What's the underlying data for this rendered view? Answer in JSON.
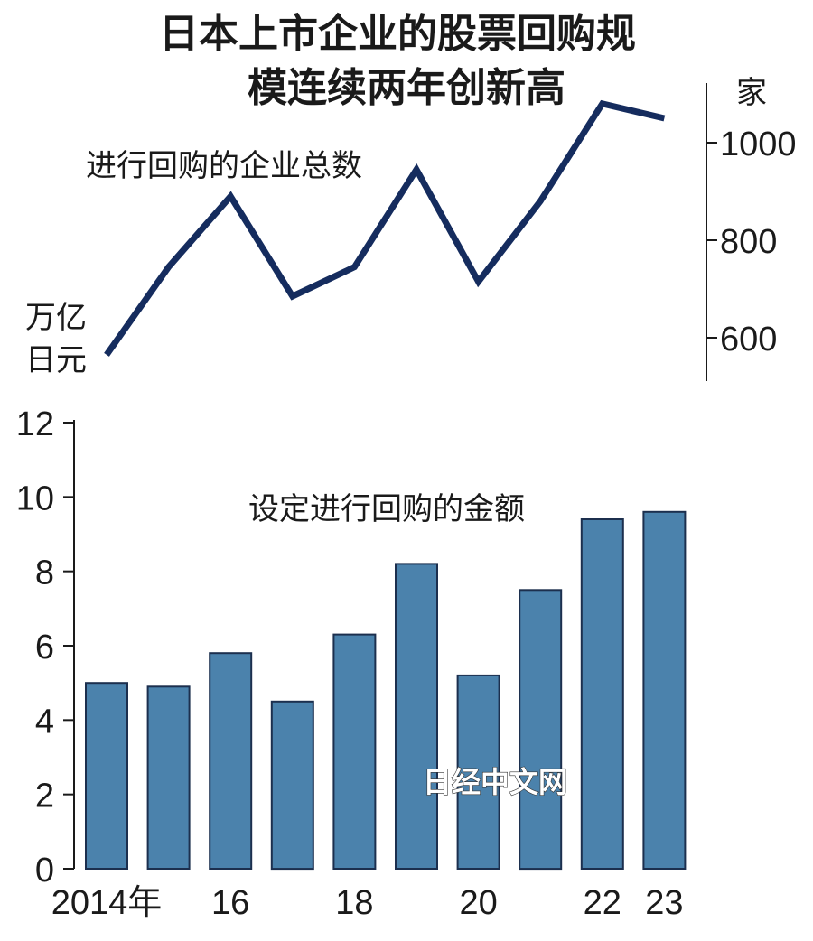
{
  "chart_data": [
    {
      "type": "line",
      "title_line1": "日本上市企业的股票回购规",
      "title_line2": "模连续两年创新高",
      "series_label": "进行回购的企业总数",
      "unit": "家",
      "x": [
        2014,
        2015,
        2016,
        2017,
        2018,
        2019,
        2020,
        2021,
        2022,
        2023
      ],
      "values": [
        565,
        745,
        890,
        685,
        745,
        945,
        715,
        880,
        1080,
        1050
      ],
      "ylim": [
        540,
        1120
      ],
      "yticks": [
        "600",
        "800",
        "1000"
      ],
      "ytick_values": [
        600,
        800,
        1000
      ],
      "color": "#152c5e"
    },
    {
      "type": "bar",
      "unit_line1": "万亿",
      "unit_line2": "日元",
      "series_label": "设定进行回购的金额",
      "categories": [
        2014,
        2015,
        2016,
        2017,
        2018,
        2019,
        2020,
        2021,
        2022,
        2023
      ],
      "values": [
        5.0,
        4.9,
        5.8,
        4.5,
        6.3,
        8.2,
        5.2,
        7.5,
        9.4,
        9.6
      ],
      "ylim": [
        0,
        12
      ],
      "yticks": [
        "0",
        "2",
        "4",
        "6",
        "8",
        "10",
        "12"
      ],
      "ytick_values": [
        0,
        2,
        4,
        6,
        8,
        10,
        12
      ],
      "xtick_labels": [
        "2014年",
        "",
        "16",
        "",
        "18",
        "",
        "20",
        "",
        "22",
        "23"
      ],
      "color": "#4b82ac",
      "edge_color": "#1c2f4e"
    }
  ],
  "watermark": "日经中文网"
}
